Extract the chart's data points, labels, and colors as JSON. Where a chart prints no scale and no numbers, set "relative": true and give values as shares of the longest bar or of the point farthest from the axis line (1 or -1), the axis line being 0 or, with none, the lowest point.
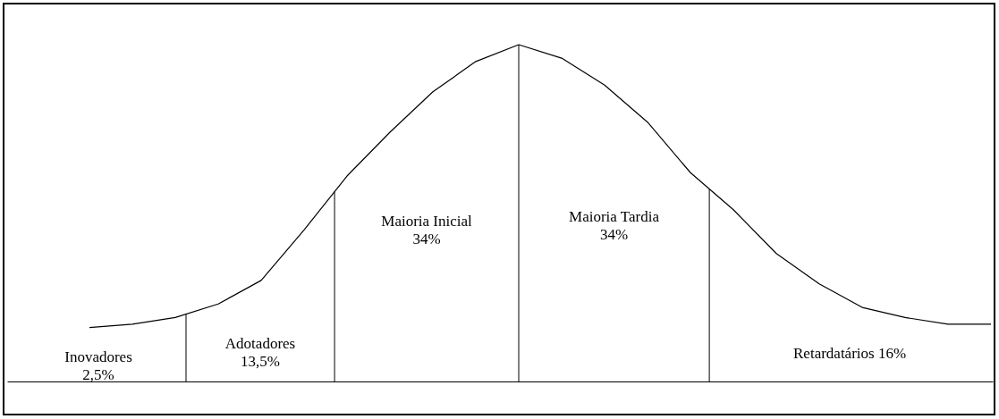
{
  "chart_data": {
    "type": "line",
    "relative": true,
    "categories": [
      null,
      null,
      null,
      null,
      null,
      null,
      null,
      null,
      null,
      null,
      null,
      null,
      null,
      null,
      null,
      null,
      null,
      null,
      null,
      null,
      null,
      null
    ],
    "series": [
      {
        "color": "#000000",
        "values": [
          0.16,
          0.17,
          0.19,
          0.23,
          0.3,
          0.45,
          0.61,
          0.74,
          0.86,
          0.95,
          1,
          0.96,
          0.88,
          0.77,
          0.62,
          0.51,
          0.38,
          0.29,
          0.22,
          0.19,
          0.17,
          0.17
        ]
      }
    ],
    "annotations": [
      "Inovadores\n2,5%",
      "Adotadores\n13,5%",
      "Maioria Inicial\n34%",
      "Maioria Tardia\n34%",
      "Retardatários 16%"
    ],
    "marker": "none",
    "line_style": "solid"
  }
}
